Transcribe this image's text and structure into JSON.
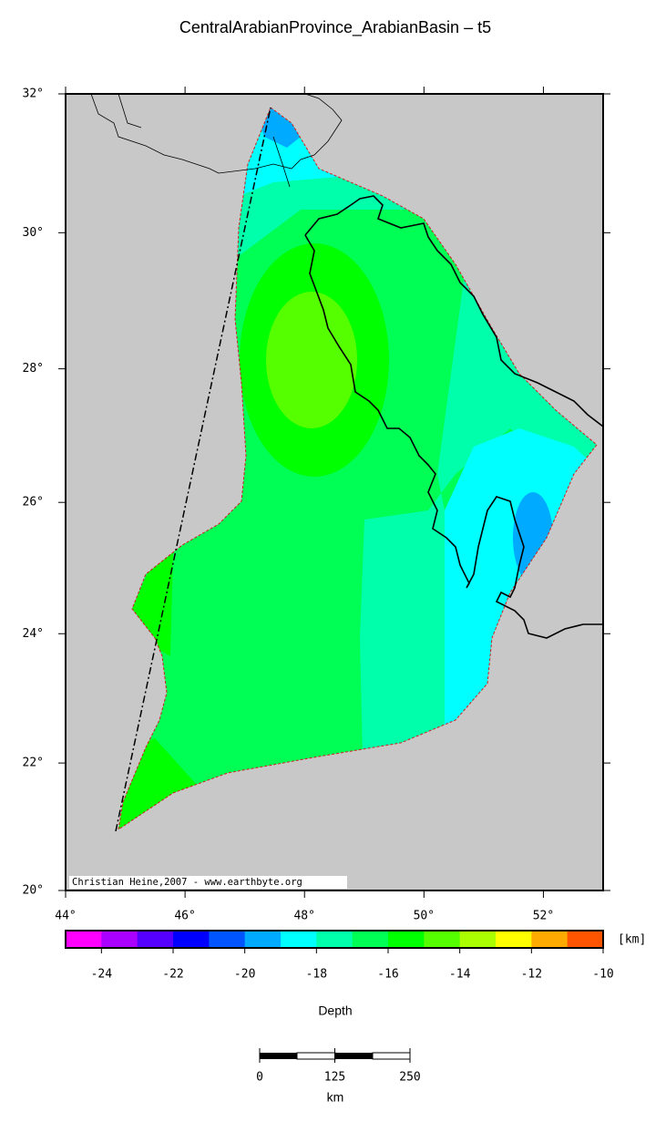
{
  "title": "CentralArabianProvince_ArabianBasin – t5",
  "map": {
    "xlim": [
      44,
      53
    ],
    "ylim": [
      20,
      32
    ],
    "xticks": [
      {
        "value": 44,
        "label": "44°"
      },
      {
        "value": 46,
        "label": "46°"
      },
      {
        "value": 48,
        "label": "48°"
      },
      {
        "value": 50,
        "label": "50°"
      },
      {
        "value": 52,
        "label": "52°"
      }
    ],
    "yticks": [
      {
        "value": 20,
        "label": "20°"
      },
      {
        "value": 22,
        "label": "22°"
      },
      {
        "value": 24,
        "label": "24°"
      },
      {
        "value": 26,
        "label": "26°"
      },
      {
        "value": 28,
        "label": "28°"
      },
      {
        "value": 30,
        "label": "30°"
      },
      {
        "value": 32,
        "label": "32°"
      }
    ],
    "credit": "Christian Heine,2007 - www.earthbyte.org"
  },
  "colorbar": {
    "lim": [
      -25,
      -10
    ],
    "ticks": [
      -24,
      -22,
      -20,
      -18,
      -16,
      -14,
      -12,
      -10
    ],
    "unit": "[km]",
    "label": "Depth",
    "colors": [
      "#ff00ff",
      "#aa00ff",
      "#5500ff",
      "#0000ff",
      "#0055ff",
      "#00aaff",
      "#00ffff",
      "#00ffaa",
      "#00ff55",
      "#00ff00",
      "#55ff00",
      "#aaff00",
      "#ffff00",
      "#ffaa00",
      "#ff5500"
    ]
  },
  "scalebar": {
    "lim": [
      0,
      250
    ],
    "ticks": [
      0,
      125,
      250
    ],
    "unit": "km"
  }
}
